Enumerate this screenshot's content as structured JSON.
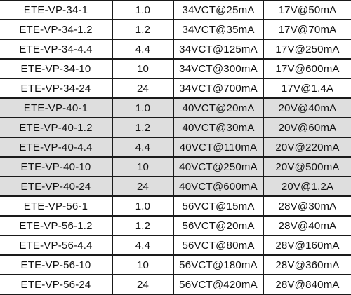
{
  "table": {
    "rows": [
      [
        "ETE-VP-34-1",
        "1.0",
        "34VCT@25mA",
        "17V@50mA"
      ],
      [
        "ETE-VP-34-1.2",
        "1.2",
        "34VCT@35mA",
        "17V@70mA"
      ],
      [
        "ETE-VP-34-4.4",
        "4.4",
        "34VCT@125mA",
        "17V@250mA"
      ],
      [
        "ETE-VP-34-10",
        "10",
        "34VCT@300mA",
        "17V@600mA"
      ],
      [
        "ETE-VP-34-24",
        "24",
        "34VCT@700mA",
        "17V@1.4A"
      ],
      [
        "ETE-VP-40-1",
        "1.0",
        "40VCT@20mA",
        "20V@40mA"
      ],
      [
        "ETE-VP-40-1.2",
        "1.2",
        "40VCT@30mA",
        "20V@60mA"
      ],
      [
        "ETE-VP-40-4.4",
        "4.4",
        "40VCT@110mA",
        "20V@220mA"
      ],
      [
        "ETE-VP-40-10",
        "10",
        "40VCT@250mA",
        "20V@500mA"
      ],
      [
        "ETE-VP-40-24",
        "24",
        "40VCT@600mA",
        "20V@1.2A"
      ],
      [
        "ETE-VP-56-1",
        "1.0",
        "56VCT@15mA",
        "28V@30mA"
      ],
      [
        "ETE-VP-56-1.2",
        "1.2",
        "56VCT@20mA",
        "28V@40mA"
      ],
      [
        "ETE-VP-56-4.4",
        "4.4",
        "56VCT@80mA",
        "28V@160mA"
      ],
      [
        "ETE-VP-56-10",
        "10",
        "56VCT@180mA",
        "28V@360mA"
      ],
      [
        "ETE-VP-56-24",
        "24",
        "56VCT@420mA",
        "28V@840mA"
      ]
    ]
  }
}
